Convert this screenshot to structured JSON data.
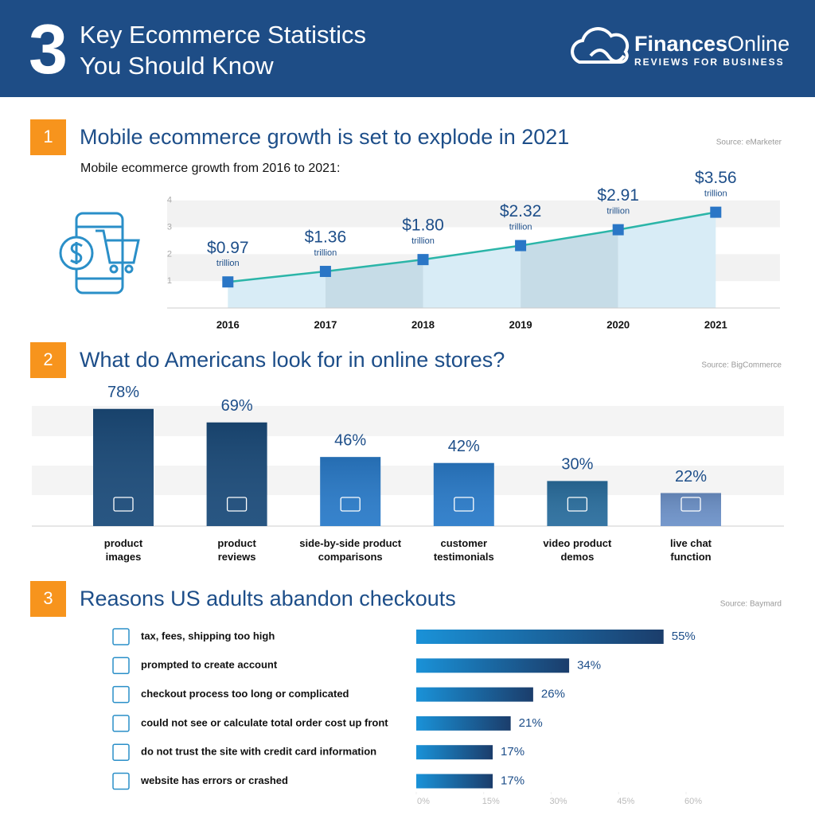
{
  "header": {
    "number": "3",
    "title": "Key Ecommerce Statistics\nYou Should Know",
    "brand_bold": "Finances",
    "brand_light": "Online",
    "tagline": "REVIEWS FOR BUSINESS"
  },
  "chart_data": [
    {
      "type": "line",
      "badge": "1",
      "title": "Mobile ecommerce growth is set to explode in 2021",
      "source": "Source: eMarketer",
      "subtitle": "Mobile ecommerce growth from 2016 to 2021:",
      "categories": [
        "2016",
        "2017",
        "2018",
        "2019",
        "2020",
        "2021"
      ],
      "values": [
        0.97,
        1.36,
        1.8,
        2.32,
        2.91,
        3.56
      ],
      "value_labels": [
        "$0.97",
        "$1.36",
        "$1.80",
        "$2.32",
        "$2.91",
        "$3.56"
      ],
      "value_unit": "trillion",
      "ylim": [
        0,
        4.2
      ],
      "yticks": [
        1,
        2,
        3,
        4
      ],
      "color": "#2bb5a8",
      "marker_color": "#2a76c6",
      "area_colors": [
        "#d8ecf6",
        "#c6dce7"
      ],
      "grid": true
    },
    {
      "type": "bar",
      "badge": "2",
      "title": "What do Americans look for in online stores?",
      "source": "Source: BigCommerce",
      "categories": [
        "product\nimages",
        "product\nreviews",
        "side-by-side product\ncomparisons",
        "customer\ntestimonials",
        "video product\ndemos",
        "live chat\nfunction"
      ],
      "values": [
        78,
        69,
        46,
        42,
        30,
        22
      ],
      "value_labels": [
        "78%",
        "69%",
        "46%",
        "42%",
        "30%",
        "22%"
      ],
      "colors": [
        "#1b4b7a",
        "#1b4b7a",
        "#2a7bc9",
        "#2a7bc9",
        "#2a6e9e",
        "#6d92c9"
      ],
      "ylim": [
        0,
        80
      ]
    },
    {
      "type": "hbar",
      "badge": "3",
      "title": "Reasons US adults abandon checkouts",
      "source": "Source: Baymard",
      "categories": [
        "tax, fees, shipping too high",
        "prompted to create account",
        "checkout process too long or complicated",
        "could not see or calculate total order cost up front",
        "do not trust the site with credit card information",
        "website has errors or crashed"
      ],
      "values": [
        55,
        34,
        26,
        21,
        17,
        17
      ],
      "value_labels": [
        "55%",
        "34%",
        "26%",
        "21%",
        "17%",
        "17%"
      ],
      "xlim": [
        0,
        60
      ],
      "xticks": [
        {
          "value": 0,
          "label": "0%"
        },
        {
          "value": 15,
          "label": "15%"
        },
        {
          "value": 30,
          "label": "30%"
        },
        {
          "value": 45,
          "label": "45%"
        },
        {
          "value": 60,
          "label": "60%"
        }
      ],
      "gradient": [
        "#1a92d8",
        "#1b3d6b"
      ]
    }
  ]
}
